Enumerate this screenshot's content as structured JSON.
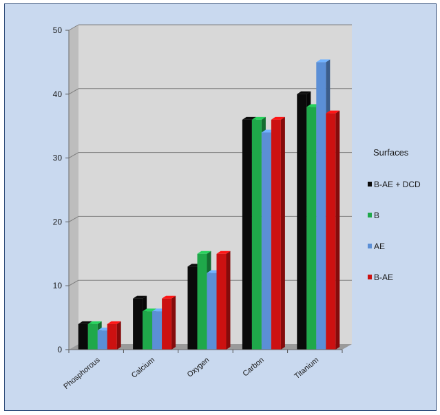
{
  "chart_data": {
    "type": "bar",
    "title": "",
    "xlabel": "",
    "ylabel": "",
    "categories": [
      "Phosphorous",
      "Calcium",
      "Oxygen",
      "Carbon",
      "Titanium"
    ],
    "series": [
      {
        "name": "B-AE + DCD",
        "color": "#0a0a0a",
        "values": [
          4,
          8,
          13,
          36,
          40
        ]
      },
      {
        "name": "B",
        "color": "#1fa84a",
        "values": [
          4,
          6,
          15,
          36,
          38
        ]
      },
      {
        "name": "AE",
        "color": "#5b8fd6",
        "values": [
          3,
          6,
          12,
          34,
          45
        ]
      },
      {
        "name": "B-AE",
        "color": "#cc1111",
        "values": [
          4,
          8,
          15,
          36,
          37
        ]
      }
    ],
    "ylim": [
      0,
      50
    ],
    "yticks": [
      0,
      10,
      20,
      30,
      40,
      50
    ],
    "grid": true,
    "style": "3d-clustered-column",
    "legend": {
      "title": "Surfaces",
      "position": "right"
    }
  },
  "colors": {
    "background": "#c9d9ef",
    "wall": "#d8d8d8",
    "wall_side": "#bdbdbd",
    "floor": "#9a9a9a",
    "grid": "#7f7f7f"
  }
}
